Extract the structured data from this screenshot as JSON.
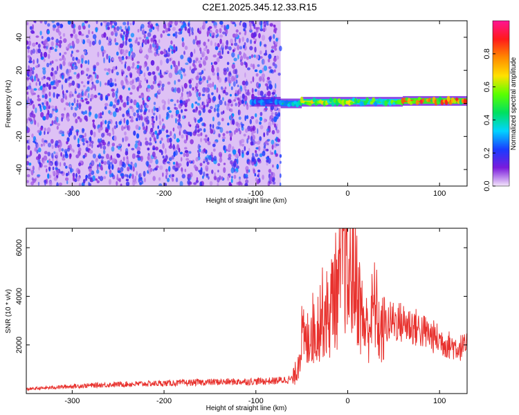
{
  "title": "C2E1.2025.345.12.33.R15",
  "colors": {
    "snr_line": "#e8322e",
    "frame": "#000000"
  },
  "chart_data": [
    {
      "type": "heatmap",
      "xlabel": "Height of straight line (km)",
      "ylabel": "Frequency (Hz)",
      "xlim": [
        -350,
        130
      ],
      "ylim": [
        -50,
        50
      ],
      "xticks": [
        -300,
        -200,
        -100,
        0,
        100
      ],
      "yticks": [
        -40,
        -20,
        0,
        20,
        40
      ],
      "colorbar": {
        "label": "Normalized spectral amplitude",
        "range": [
          0,
          1
        ],
        "ticks": [
          0.0,
          0.2,
          0.4,
          0.6,
          0.8
        ],
        "tick_labels": [
          "0.0",
          "0.2",
          "0.4",
          "0.6",
          "0.8"
        ],
        "colormap": [
          "#f4e6fb",
          "#7a1bdc",
          "#1a3cff",
          "#00d4ff",
          "#00e060",
          "#5aff00",
          "#ffe100",
          "#ff8a00",
          "#ff1a1a",
          "#ff1493"
        ]
      },
      "noise_region": {
        "x_range": [
          -350,
          -73
        ],
        "amplitude_range": [
          0.0,
          0.2
        ]
      },
      "signal_band": {
        "segments": [
          {
            "x_range": [
              -105,
              -73
            ],
            "freq_center": 1,
            "amplitude": 0.3
          },
          {
            "x_range": [
              -73,
              -50
            ],
            "freq_center": 0,
            "amplitude": 0.45
          },
          {
            "x_range": [
              -50,
              10
            ],
            "freq_center": 1,
            "amplitude": 0.65
          },
          {
            "x_range": [
              10,
              60
            ],
            "freq_center": 1,
            "amplitude": 0.55
          },
          {
            "x_range": [
              60,
              130
            ],
            "freq_center": 1.5,
            "amplitude": 0.85
          }
        ]
      }
    },
    {
      "type": "line",
      "xlabel": "Height of straight line (km)",
      "ylabel": "SNR (10 * v/v)",
      "xlim": [
        -350,
        130
      ],
      "ylim": [
        0,
        6800
      ],
      "xticks": [
        -300,
        -200,
        -100,
        0,
        100
      ],
      "yticks": [
        2000,
        4000,
        6000
      ],
      "series": [
        {
          "x": [
            -350,
            -300,
            -250,
            -200,
            -150,
            -100,
            -80,
            -60,
            -55,
            -50,
            -45,
            -40,
            -35,
            -30,
            -25,
            -20,
            -15,
            -10,
            -7,
            -5,
            0,
            5,
            10,
            15,
            20,
            25,
            30,
            35,
            40,
            50,
            60,
            70,
            80,
            90,
            100,
            110,
            120,
            130
          ],
          "values": [
            180,
            300,
            380,
            420,
            470,
            500,
            520,
            600,
            1100,
            2500,
            2100,
            3000,
            2600,
            3400,
            3600,
            3300,
            4600,
            4300,
            5800,
            6800,
            4600,
            5400,
            4800,
            3400,
            2800,
            3200,
            3900,
            2600,
            2800,
            3000,
            2900,
            2800,
            2600,
            2400,
            2200,
            2000,
            1900,
            1900
          ]
        }
      ]
    }
  ]
}
